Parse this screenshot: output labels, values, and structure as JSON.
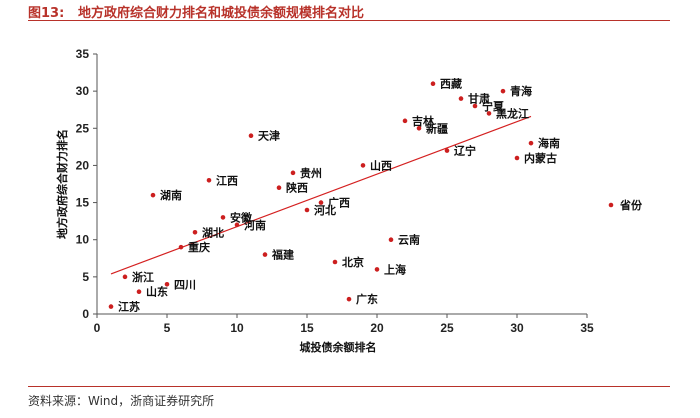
{
  "header": {
    "fig_label": "图13:",
    "title": "地方政府综合财力排名和城投债余额规模排名对比"
  },
  "footer": {
    "source": "资料来源：Wind，浙商证券研究所"
  },
  "colors": {
    "accent": "#b8322a",
    "point": "#cc1f1f",
    "trend": "#d42020"
  },
  "chart_data": {
    "type": "scatter",
    "title": "",
    "xlabel": "城投债余额排名",
    "ylabel": "地方政府综合财力排名",
    "xlim": [
      0,
      35
    ],
    "ylim": [
      0,
      35
    ],
    "xticks": [
      0,
      5,
      10,
      15,
      20,
      25,
      30,
      35
    ],
    "yticks": [
      0,
      5,
      10,
      15,
      20,
      25,
      30,
      35
    ],
    "grid": false,
    "legend": "right",
    "series": [
      {
        "name": "省份",
        "points": [
          {
            "label": "江苏",
            "x": 1,
            "y": 1
          },
          {
            "label": "山东",
            "x": 3,
            "y": 3
          },
          {
            "label": "浙江",
            "x": 2,
            "y": 5
          },
          {
            "label": "四川",
            "x": 5,
            "y": 4
          },
          {
            "label": "湖南",
            "x": 4,
            "y": 16
          },
          {
            "label": "重庆",
            "x": 6,
            "y": 9
          },
          {
            "label": "湖北",
            "x": 7,
            "y": 11
          },
          {
            "label": "江西",
            "x": 8,
            "y": 18
          },
          {
            "label": "安徽",
            "x": 9,
            "y": 13
          },
          {
            "label": "河南",
            "x": 10,
            "y": 12
          },
          {
            "label": "天津",
            "x": 11,
            "y": 24
          },
          {
            "label": "福建",
            "x": 12,
            "y": 8
          },
          {
            "label": "陕西",
            "x": 13,
            "y": 17
          },
          {
            "label": "贵州",
            "x": 14,
            "y": 19
          },
          {
            "label": "河北",
            "x": 15,
            "y": 14
          },
          {
            "label": "广西",
            "x": 16,
            "y": 15
          },
          {
            "label": "北京",
            "x": 17,
            "y": 7
          },
          {
            "label": "广东",
            "x": 18,
            "y": 2
          },
          {
            "label": "山西",
            "x": 19,
            "y": 20
          },
          {
            "label": "上海",
            "x": 20,
            "y": 6
          },
          {
            "label": "云南",
            "x": 21,
            "y": 10
          },
          {
            "label": "吉林",
            "x": 22,
            "y": 26
          },
          {
            "label": "新疆",
            "x": 23,
            "y": 25
          },
          {
            "label": "西藏",
            "x": 24,
            "y": 31
          },
          {
            "label": "辽宁",
            "x": 25,
            "y": 22
          },
          {
            "label": "甘肃",
            "x": 26,
            "y": 29
          },
          {
            "label": "宁夏",
            "x": 27,
            "y": 28
          },
          {
            "label": "黑龙江",
            "x": 28,
            "y": 27
          },
          {
            "label": "青海",
            "x": 29,
            "y": 30
          },
          {
            "label": "内蒙古",
            "x": 30,
            "y": 21
          },
          {
            "label": "海南",
            "x": 31,
            "y": 23
          }
        ]
      }
    ],
    "trendline": {
      "type": "linear",
      "x": [
        1,
        31
      ],
      "y": [
        5.4,
        26.6
      ]
    }
  }
}
